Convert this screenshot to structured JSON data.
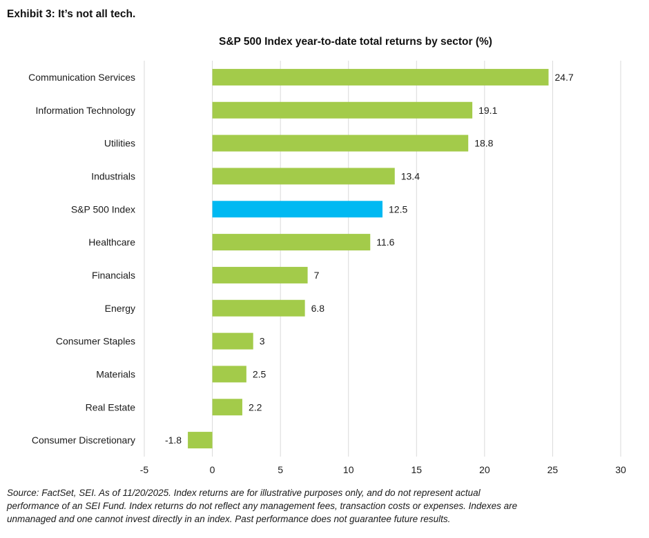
{
  "exhibit_title": "Exhibit 3: It’s not all tech.",
  "chart_data": {
    "type": "bar",
    "orientation": "horizontal",
    "title": "S&P 500 Index year-to-date total returns by sector (%)",
    "categories": [
      "Communication Services",
      "Information Technology",
      "Utilities",
      "Industrials",
      "S&P 500 Index",
      "Healthcare",
      "Financials",
      "Energy",
      "Consumer Staples",
      "Materials",
      "Real Estate",
      "Consumer Discretionary"
    ],
    "values": [
      24.7,
      19.1,
      18.8,
      13.4,
      12.5,
      11.6,
      7,
      6.8,
      3,
      2.5,
      2.2,
      -1.8
    ],
    "value_labels": [
      "24.7",
      "19.1",
      "18.8",
      "13.4",
      "12.5",
      "11.6",
      "7",
      "6.8",
      "3",
      "2.5",
      "2.2",
      "-1.8"
    ],
    "highlight_index": 4,
    "xlim": [
      -5,
      30
    ],
    "xticks": [
      -5,
      0,
      5,
      10,
      15,
      20,
      25,
      30
    ],
    "grid": "vertical",
    "legend": "none",
    "colors": {
      "bar": "#a3cb4a",
      "highlight": "#00b9f2",
      "gridline": "#d9d9d9",
      "text": "#1a1a1a"
    }
  },
  "footnote": "Source: FactSet, SEI. As of 11/20/2025. Index returns are for illustrative purposes only, and do not represent actual performance of an SEI Fund. Index returns do not reflect any management fees, transaction costs or expenses. Indexes are unmanaged and one cannot invest directly in an index. Past performance does not guarantee future results."
}
